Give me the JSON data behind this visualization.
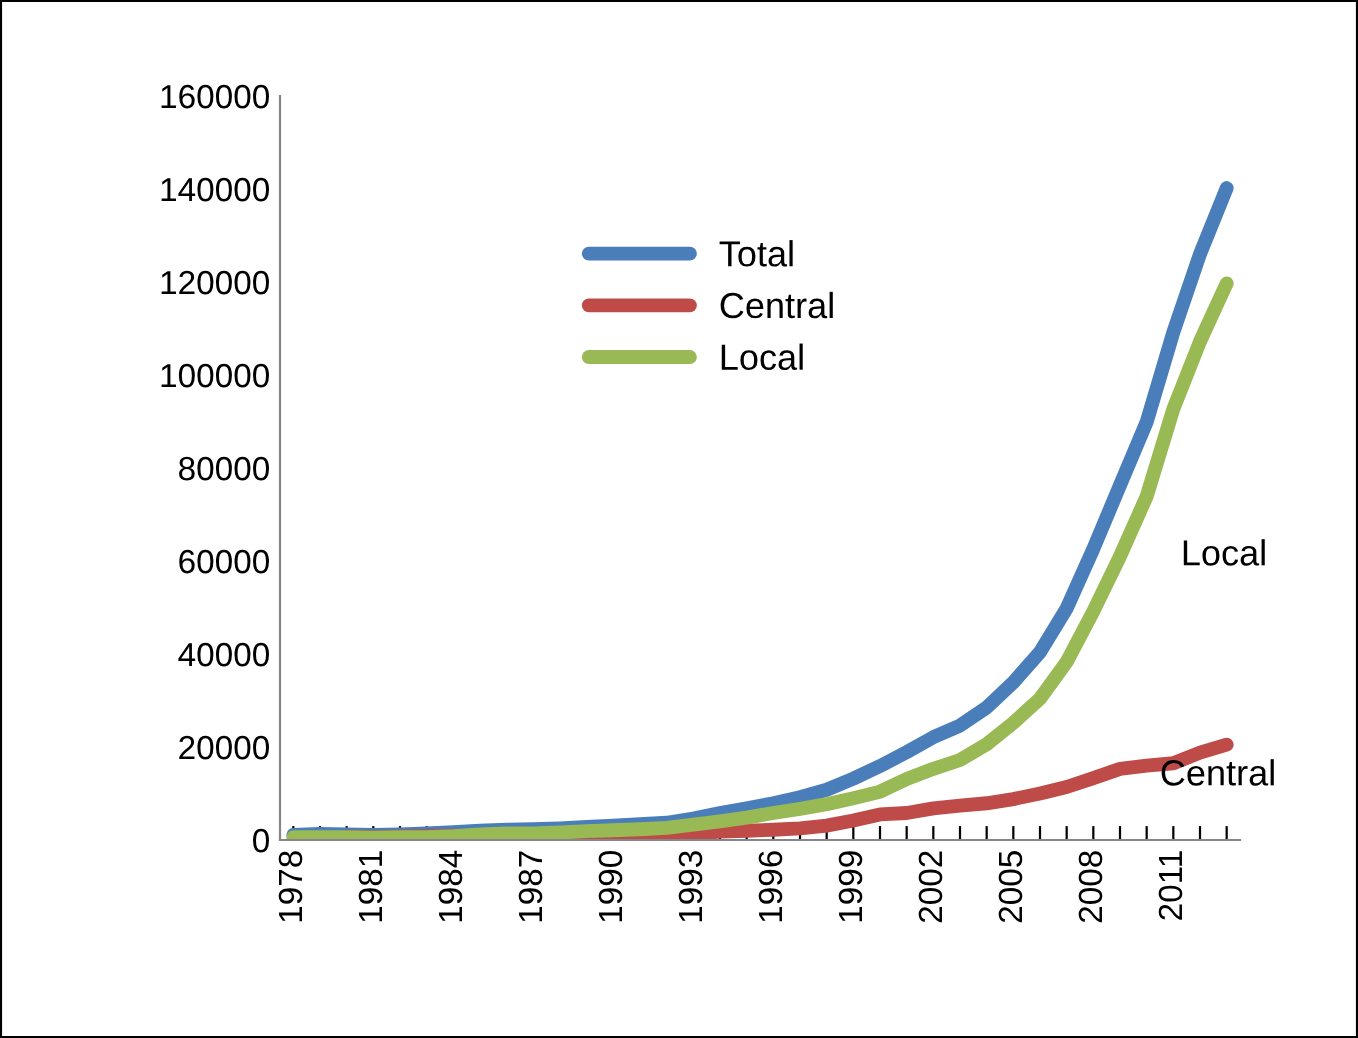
{
  "chart_data": {
    "type": "line",
    "categories": [
      "1978",
      null,
      null,
      "1981",
      null,
      null,
      "1984",
      null,
      null,
      "1987",
      null,
      null,
      "1990",
      null,
      null,
      "1993",
      null,
      null,
      "1996",
      null,
      null,
      "1999",
      null,
      null,
      "2002",
      null,
      null,
      "2005",
      null,
      null,
      "2008",
      null,
      null,
      "2011",
      null,
      null
    ],
    "series": [
      {
        "name": "Total",
        "color": "#4a7ebb",
        "values": [
          1100,
          1300,
          1200,
          1100,
          1200,
          1400,
          1700,
          2000,
          2200,
          2300,
          2500,
          2800,
          3100,
          3400,
          3700,
          4600,
          5800,
          6800,
          7900,
          9200,
          10800,
          13200,
          15900,
          18900,
          22100,
          24600,
          28500,
          33900,
          40400,
          49800,
          62600,
          76300,
          89900,
          109200,
          126000,
          140200
        ]
      },
      {
        "name": "Central",
        "color": "#be4b48",
        "values": [
          null,
          null,
          700,
          600,
          700,
          800,
          900,
          800,
          800,
          800,
          800,
          900,
          1000,
          1100,
          1200,
          1300,
          1800,
          2000,
          2200,
          2500,
          3100,
          4200,
          5500,
          5800,
          6800,
          7400,
          7900,
          8800,
          10000,
          11400,
          13300,
          15300,
          16000,
          16500,
          18800,
          20500
        ]
      },
      {
        "name": "Local",
        "color": "#98b954",
        "values": [
          600,
          600,
          600,
          500,
          600,
          600,
          800,
          1200,
          1400,
          1400,
          1600,
          1900,
          2100,
          2300,
          2600,
          3300,
          4000,
          4800,
          5800,
          6700,
          7700,
          9000,
          10400,
          13100,
          15300,
          17200,
          20600,
          25200,
          30400,
          38300,
          49200,
          61000,
          73900,
          92700,
          107200,
          119700
        ]
      }
    ],
    "ylim": [
      0,
      160000
    ],
    "yticks": [
      0,
      20000,
      40000,
      60000,
      80000,
      100000,
      120000,
      140000,
      160000
    ],
    "grid": false,
    "legend": "top",
    "marker": "none",
    "line_style": "solid",
    "annotations": [
      "Local",
      "Central"
    ]
  }
}
